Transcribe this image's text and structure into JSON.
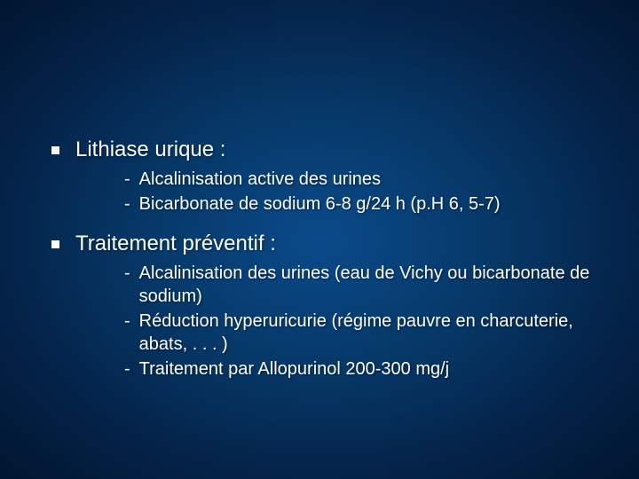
{
  "slide": {
    "background": {
      "gradient_center": "#0a4a8a",
      "gradient_mid": "#063766",
      "gradient_outer": "#042349",
      "gradient_edge": "#011530"
    },
    "text_color": "#ffffff",
    "heading_fontsize": 24,
    "body_fontsize": 20,
    "sections": [
      {
        "heading": "Lithiase urique :",
        "items": [
          "Alcalinisation active des urines",
          "Bicarbonate de sodium 6-8 g/24 h (p.H 6, 5-7)"
        ]
      },
      {
        "heading": "Traitement préventif :",
        "items": [
          "Alcalinisation des urines (eau de Vichy ou bicarbonate de sodium)",
          "Réduction hyperuricurie (régime pauvre en charcuterie, abats, . . . )",
          "Traitement par Allopurinol 200-300 mg/j"
        ]
      }
    ]
  }
}
